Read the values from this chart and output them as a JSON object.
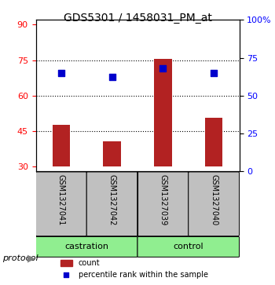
{
  "title": "GDS5301 / 1458031_PM_at",
  "samples": [
    "GSM1327041",
    "GSM1327042",
    "GSM1327039",
    "GSM1327040"
  ],
  "bar_values": [
    47.5,
    40.5,
    75.5,
    50.5
  ],
  "bar_baseline": 30,
  "percentile_values": [
    66,
    63,
    69,
    66
  ],
  "bar_color": "#B22222",
  "point_color": "#0000CC",
  "ylim_left": [
    28,
    92
  ],
  "ylim_right": [
    0,
    100
  ],
  "yticks_left": [
    30,
    45,
    60,
    75,
    90
  ],
  "yticks_right": [
    0,
    25,
    50,
    75,
    100
  ],
  "grid_lines": [
    45,
    60,
    75
  ],
  "groups": [
    {
      "label": "castration",
      "samples": [
        0,
        1
      ]
    },
    {
      "label": "control",
      "samples": [
        2,
        3
      ]
    }
  ],
  "group_color": "#90EE90",
  "sample_box_color": "#C0C0C0",
  "legend_count_label": "count",
  "legend_pct_label": "percentile rank within the sample",
  "protocol_label": "protocol",
  "background_color": "#FFFFFF"
}
